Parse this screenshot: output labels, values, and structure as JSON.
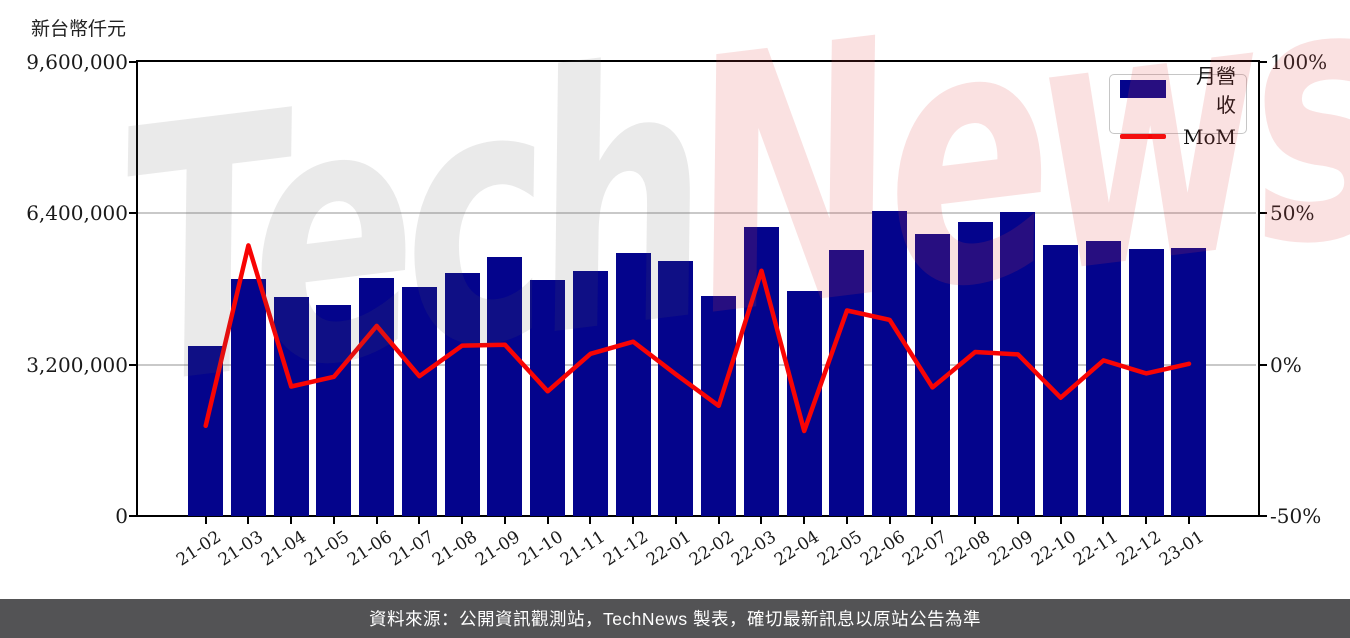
{
  "header": {
    "unit_label": "新台幣仟元"
  },
  "watermark": {
    "gray_text": "Tech",
    "pink_text": "News"
  },
  "footer": {
    "caption": "資料來源：公開資訊觀測站，TechNews 製表，確切最新訊息以原站公告為準"
  },
  "colors": {
    "bar": "#04048c",
    "line": "#f80404",
    "grid": "#c9c9c9",
    "caption_bg": "#535355",
    "caption_text": "#ffffff"
  },
  "chart_data": {
    "type": "bar+line combo",
    "title": "",
    "categories": [
      "21-02",
      "21-03",
      "21-04",
      "21-05",
      "21-06",
      "21-07",
      "21-08",
      "21-09",
      "21-10",
      "21-11",
      "21-12",
      "22-01",
      "22-02",
      "22-03",
      "22-04",
      "22-05",
      "22-06",
      "22-07",
      "22-08",
      "22-09",
      "22-10",
      "22-11",
      "22-12",
      "23-01"
    ],
    "series": [
      {
        "name": "月營收",
        "type": "bar",
        "axis": "left",
        "color": "#04048c",
        "unit": "新台幣仟元",
        "values": [
          3588000,
          5002000,
          4641000,
          4455000,
          5025000,
          4834000,
          5139000,
          5478000,
          4996000,
          5176000,
          5569000,
          5391000,
          4658000,
          6102000,
          4766000,
          5619000,
          6451000,
          5967000,
          6218000,
          6429000,
          5728000,
          5808000,
          5640000,
          5657000
        ]
      },
      {
        "name": "MoM",
        "type": "line",
        "axis": "right",
        "color": "#f80404",
        "unit": "%",
        "values": [
          -20.2,
          39.4,
          -7.2,
          -4.0,
          12.8,
          -3.8,
          6.3,
          6.6,
          -8.8,
          3.6,
          7.6,
          -3.2,
          -13.6,
          31.0,
          -21.9,
          17.9,
          14.8,
          -7.5,
          4.2,
          3.4,
          -10.9,
          1.4,
          -2.9,
          0.3
        ]
      }
    ],
    "left_axis": {
      "label": "新台幣仟元",
      "tick_labels": [
        "9,600,000",
        "6,400,000",
        "3,200,000",
        "0"
      ],
      "tick_values": [
        9600000,
        6400000,
        3200000,
        0
      ],
      "min": 0,
      "max": 9600000
    },
    "right_axis": {
      "tick_labels": [
        "100%",
        "50%",
        "0%",
        "-50%"
      ],
      "tick_values": [
        100,
        50,
        0,
        -50
      ],
      "min": -50,
      "max": 100
    },
    "grid": "horizontal gridlines at 6,400,000/50% and 3,200,000/0%",
    "legend_position": "top-right inside plot"
  }
}
